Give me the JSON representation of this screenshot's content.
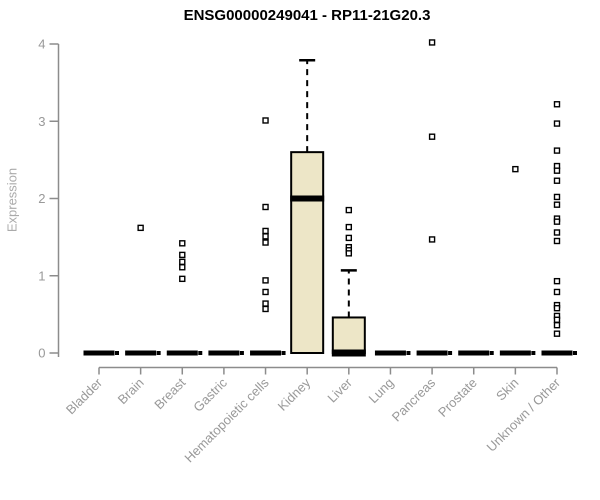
{
  "chart": {
    "title": "ENSG00000249041 - RP11-21G20.3",
    "y_axis": {
      "label": "Expression",
      "ticks": [
        0,
        1,
        2,
        3,
        4
      ]
    },
    "colors": {
      "box_fill": "#EDE6C7",
      "box_border": "#000000",
      "median": "#000000",
      "outlier_stroke": "#000000",
      "outlier_fill": "#FFFFFF",
      "axis_line": "#8C8C8C",
      "tick_label": "#999999",
      "axis_title": "#AAAAAA",
      "title_color": "#000000",
      "background": "#FFFFFF"
    }
  },
  "chart_data": {
    "type": "box",
    "title": "ENSG00000249041 - RP11-21G20.3",
    "xlabel": "",
    "ylabel": "Expression",
    "ylim": [
      0,
      4
    ],
    "y_ticks": [
      0,
      1,
      2,
      3,
      4
    ],
    "grid": false,
    "legend": "none",
    "categories": [
      "Bladder",
      "Brain",
      "Breast",
      "Gastric",
      "Hematopoietic cells",
      "Kidney",
      "Liver",
      "Lung",
      "Pancreas",
      "Prostate",
      "Skin",
      "Unknown / Other"
    ],
    "series": [
      {
        "name": "Bladder",
        "q1": 0,
        "median": 0,
        "q3": 0,
        "whisker_low": 0,
        "whisker_high": 0,
        "outliers": []
      },
      {
        "name": "Brain",
        "q1": 0,
        "median": 0,
        "q3": 0,
        "whisker_low": 0,
        "whisker_high": 0,
        "outliers": [
          1.62
        ]
      },
      {
        "name": "Breast",
        "q1": 0,
        "median": 0,
        "q3": 0,
        "whisker_low": 0,
        "whisker_high": 0,
        "outliers": [
          1.42,
          1.27,
          1.18,
          1.11,
          0.96
        ]
      },
      {
        "name": "Gastric",
        "q1": 0,
        "median": 0,
        "q3": 0,
        "whisker_low": 0,
        "whisker_high": 0,
        "outliers": []
      },
      {
        "name": "Hematopoietic cells",
        "q1": 0,
        "median": 0,
        "q3": 0,
        "whisker_low": 0,
        "whisker_high": 0,
        "outliers": [
          3.01,
          1.89,
          1.58,
          1.51,
          1.43,
          0.94,
          0.79,
          0.64,
          0.57
        ]
      },
      {
        "name": "Kidney",
        "q1": 0,
        "median": 2.0,
        "q3": 2.6,
        "whisker_low": 0,
        "whisker_high": 3.79,
        "outliers": []
      },
      {
        "name": "Liver",
        "q1": 0,
        "median": 0,
        "q3": 0.46,
        "whisker_low": 0,
        "whisker_high": 1.07,
        "outliers": [
          1.85,
          1.63,
          1.49,
          1.37,
          1.33,
          1.29
        ]
      },
      {
        "name": "Lung",
        "q1": 0,
        "median": 0,
        "q3": 0,
        "whisker_low": 0,
        "whisker_high": 0,
        "outliers": []
      },
      {
        "name": "Pancreas",
        "q1": 0,
        "median": 0,
        "q3": 0,
        "whisker_low": 0,
        "whisker_high": 0,
        "outliers": [
          4.02,
          2.8,
          1.47
        ]
      },
      {
        "name": "Prostate",
        "q1": 0,
        "median": 0,
        "q3": 0,
        "whisker_low": 0,
        "whisker_high": 0,
        "outliers": []
      },
      {
        "name": "Skin",
        "q1": 0,
        "median": 0,
        "q3": 0,
        "whisker_low": 0,
        "whisker_high": 0,
        "outliers": [
          2.38
        ]
      },
      {
        "name": "Unknown / Other",
        "q1": 0,
        "median": 0,
        "q3": 0,
        "whisker_low": 0,
        "whisker_high": 0,
        "outliers": [
          3.22,
          2.97,
          2.62,
          2.42,
          2.36,
          2.23,
          2.02,
          1.92,
          1.74,
          1.7,
          1.56,
          1.45,
          0.93,
          0.79,
          0.62,
          0.58,
          0.48,
          0.43,
          0.36,
          0.25
        ]
      }
    ]
  }
}
